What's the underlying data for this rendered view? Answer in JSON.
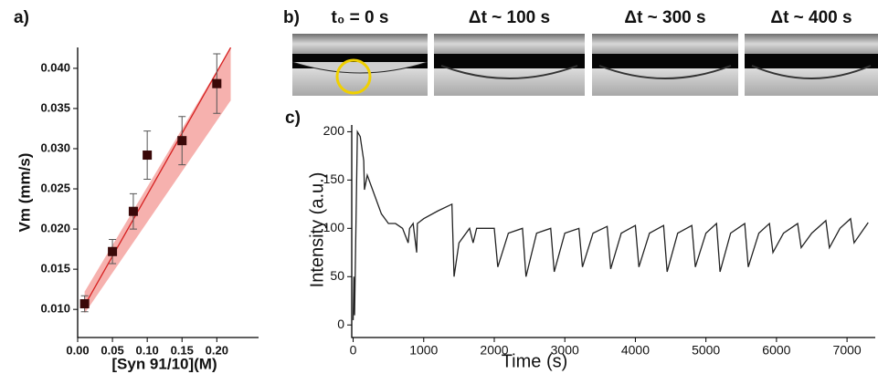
{
  "chart_data": [
    {
      "type": "scatter",
      "panel_label": "a)",
      "xlabel": "[Syn 91/10](M)",
      "ylabel": "Vm (mm/s)",
      "x": [
        0.01,
        0.05,
        0.08,
        0.1,
        0.15,
        0.2
      ],
      "values": [
        0.0107,
        0.0172,
        0.0222,
        0.0292,
        0.031,
        0.0381
      ],
      "errors": [
        0.001,
        0.0015,
        0.0022,
        0.003,
        0.003,
        0.0037
      ],
      "color": "#3a0808",
      "fit": {
        "x": [
          0.01,
          0.22
        ],
        "values": [
          0.0105,
          0.0426
        ],
        "lower": [
          0.0095,
          0.036
        ],
        "upper": [
          0.0122,
          0.0426
        ],
        "color": "#d62020",
        "band_color": "#f5a3a0"
      },
      "xlim": [
        0,
        0.26
      ],
      "ylim": [
        0.0065,
        0.0426
      ],
      "xticks": [
        {
          "value": 0,
          "label": "0.00"
        },
        {
          "value": 0.05,
          "label": "0.05"
        },
        {
          "value": 0.1,
          "label": "0.10"
        },
        {
          "value": 0.15,
          "label": "0.15"
        },
        {
          "value": 0.2,
          "label": "0.20"
        }
      ],
      "yticks": [
        {
          "value": 0.01,
          "label": "0.010"
        },
        {
          "value": 0.015,
          "label": "0.015"
        },
        {
          "value": 0.02,
          "label": "0.020"
        },
        {
          "value": 0.025,
          "label": "0.025"
        },
        {
          "value": 0.03,
          "label": "0.030"
        },
        {
          "value": 0.035,
          "label": "0.035"
        },
        {
          "value": 0.04,
          "label": "0.040"
        }
      ]
    },
    {
      "type": "line",
      "panel_label": "c)",
      "xlabel": "Time (s)",
      "ylabel": "Intensity (a.u.)",
      "color": "#222222",
      "x": [
        0,
        10,
        20,
        60,
        100,
        150,
        160,
        200,
        300,
        400,
        500,
        600,
        700,
        780,
        800,
        850,
        900,
        910,
        1000,
        1200,
        1400,
        1430,
        1500,
        1650,
        1700,
        1750,
        2000,
        2050,
        2200,
        2400,
        2450,
        2600,
        2800,
        2850,
        3000,
        3200,
        3250,
        3400,
        3600,
        3650,
        3800,
        4000,
        4050,
        4200,
        4400,
        4450,
        4600,
        4800,
        4850,
        5000,
        5150,
        5200,
        5350,
        5550,
        5600,
        5750,
        5900,
        5950,
        6100,
        6300,
        6350,
        6500,
        6700,
        6750,
        6900,
        7050,
        7100,
        7300
      ],
      "values": [
        5,
        50,
        10,
        200,
        195,
        170,
        140,
        155,
        135,
        115,
        105,
        105,
        100,
        85,
        100,
        105,
        75,
        105,
        110,
        118,
        125,
        50,
        85,
        100,
        85,
        100,
        100,
        60,
        95,
        100,
        50,
        95,
        100,
        55,
        95,
        100,
        60,
        95,
        102,
        58,
        95,
        103,
        60,
        95,
        103,
        55,
        95,
        103,
        60,
        95,
        105,
        55,
        95,
        105,
        60,
        95,
        105,
        75,
        95,
        105,
        80,
        95,
        108,
        80,
        100,
        110,
        85,
        106
      ],
      "xlim": [
        -20,
        7400
      ],
      "ylim": [
        -13,
        207
      ],
      "xticks": [
        0,
        1000,
        2000,
        3000,
        4000,
        5000,
        6000,
        7000
      ],
      "yticks": [
        0,
        50,
        100,
        150,
        200
      ]
    }
  ],
  "panel_b": {
    "label": "b)",
    "frames": [
      "t₀ = 0 s",
      "Δt ~ 100 s",
      "Δt ~ 300 s",
      "Δt ~ 400 s"
    ]
  }
}
